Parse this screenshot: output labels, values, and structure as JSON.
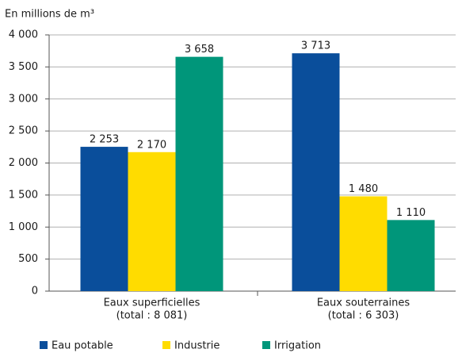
{
  "chart_data": {
    "type": "bar",
    "ylabel": "En millions de m³",
    "categories": [
      [
        "Eaux superficielles",
        "(total : 8 081)"
      ],
      [
        "Eaux souterraines",
        "(total : 6 303)"
      ]
    ],
    "series": [
      {
        "name": "Eau potable",
        "color": "#0a4e9b",
        "values": [
          2253,
          3713
        ],
        "value_labels": [
          "2 253",
          "3 713"
        ]
      },
      {
        "name": "Industrie",
        "color": "#ffdc00",
        "values": [
          2170,
          1480
        ],
        "value_labels": [
          "2 170",
          "1 480"
        ]
      },
      {
        "name": "Irrigation",
        "color": "#00967a",
        "values": [
          3658,
          1110
        ],
        "value_labels": [
          "3 658",
          "1 110"
        ]
      }
    ],
    "ylim": [
      0,
      4000
    ],
    "yticks": [
      0,
      500,
      {
        "value": 1000,
        "label": "1 000"
      },
      {
        "value": 1500,
        "label": "1 500"
      },
      {
        "value": 2000,
        "label": "2 000"
      },
      {
        "value": 2500,
        "label": "2 500"
      },
      {
        "value": 3000,
        "label": "3 000"
      },
      {
        "value": 3500,
        "label": "3 500"
      },
      {
        "value": 4000,
        "label": "4 000"
      }
    ],
    "grid": true
  }
}
